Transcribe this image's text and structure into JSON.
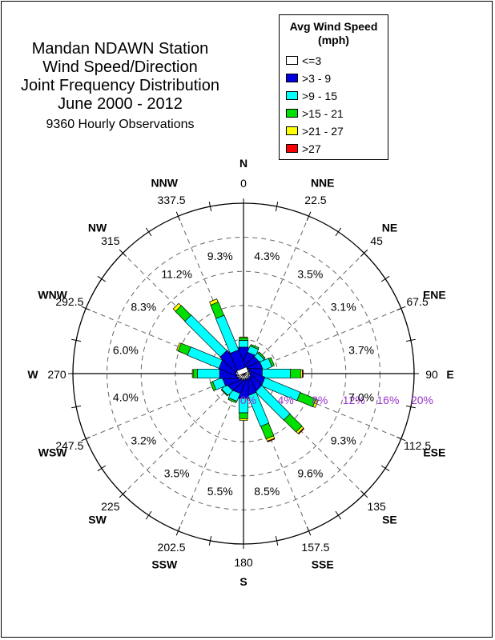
{
  "title": {
    "lines": [
      "Mandan NDAWN Station",
      "Wind Speed/Direction",
      "Joint Frequency Distribution",
      "June 2000 - 2012"
    ],
    "observations": "9360 Hourly Observations"
  },
  "legend": {
    "title": "Avg Wind Speed",
    "unit": "(mph)",
    "items": [
      {
        "label": "<=3",
        "color": "#ffffff"
      },
      {
        "label": ">3 - 9",
        "color": "#0000e0"
      },
      {
        "label": ">9 - 15",
        "color": "#00ffff"
      },
      {
        "label": ">15 - 21",
        "color": "#00e000"
      },
      {
        "label": ">21 - 27",
        "color": "#ffff00"
      },
      {
        "label": ">27",
        "color": "#ff0000"
      }
    ]
  },
  "chart_data": {
    "type": "wind-rose",
    "radial_ticks": [
      "0%",
      "4%",
      "8%",
      "12%",
      "16%",
      "20%"
    ],
    "radial_max": 20,
    "radial_tick_color": "#9933cc",
    "directions": [
      {
        "abbr": "N",
        "deg": "0",
        "pct": "4.3%"
      },
      {
        "abbr": "NNE",
        "deg": "22.5",
        "pct": "3.5%"
      },
      {
        "abbr": "NE",
        "deg": "45",
        "pct": "3.1%"
      },
      {
        "abbr": "ENE",
        "deg": "67.5",
        "pct": "3.7%"
      },
      {
        "abbr": "E",
        "deg": "90",
        "pct": "7.0%"
      },
      {
        "abbr": "ESE",
        "deg": "112.5",
        "pct": "9.3%"
      },
      {
        "abbr": "SE",
        "deg": "135",
        "pct": "9.6%"
      },
      {
        "abbr": "SSE",
        "deg": "157.5",
        "pct": "8.5%"
      },
      {
        "abbr": "S",
        "deg": "180",
        "pct": "5.5%"
      },
      {
        "abbr": "SSW",
        "deg": "202.5",
        "pct": "3.5%"
      },
      {
        "abbr": "SW",
        "deg": "225",
        "pct": "3.2%"
      },
      {
        "abbr": "WSW",
        "deg": "247.5",
        "pct": "4.0%"
      },
      {
        "abbr": "W",
        "deg": "270",
        "pct": "6.0%"
      },
      {
        "abbr": "WNW",
        "deg": "292.5",
        "pct": "8.3%"
      },
      {
        "abbr": "NW",
        "deg": "315",
        "pct": "11.2%"
      },
      {
        "abbr": "NNW",
        "deg": "337.5",
        "pct": "9.3%"
      }
    ],
    "direction_angles": [
      0,
      22.5,
      45,
      67.5,
      90,
      112.5,
      135,
      157.5,
      180,
      202.5,
      225,
      247.5,
      270,
      292.5,
      315,
      337.5
    ],
    "series": [
      {
        "name": "<=3",
        "values": [
          0.6,
          0.5,
          0.5,
          0.5,
          0.5,
          0.5,
          0.5,
          0.6,
          0.6,
          0.5,
          0.5,
          0.5,
          0.6,
          0.6,
          0.7,
          0.6
        ]
      },
      {
        "name": ">3 - 9",
        "values": [
          2.5,
          2.0,
          1.8,
          1.8,
          1.7,
          2.0,
          2.0,
          2.0,
          2.3,
          1.8,
          1.8,
          2.0,
          2.2,
          2.3,
          2.6,
          2.2
        ]
      },
      {
        "name": ">9 - 15",
        "values": [
          0.8,
          0.8,
          0.6,
          1.1,
          3.3,
          4.5,
          4.7,
          3.9,
          1.7,
          1.0,
          0.8,
          1.2,
          2.6,
          4.0,
          5.9,
          4.4
        ]
      },
      {
        "name": ">15 - 21",
        "values": [
          0.3,
          0.2,
          0.2,
          0.3,
          1.2,
          2.0,
          2.0,
          1.6,
          0.7,
          0.2,
          0.1,
          0.3,
          0.5,
          1.2,
          1.6,
          1.7
        ]
      },
      {
        "name": ">21 - 27",
        "values": [
          0.1,
          0.0,
          0.0,
          0.0,
          0.2,
          0.3,
          0.3,
          0.3,
          0.2,
          0.0,
          0.0,
          0.0,
          0.1,
          0.2,
          0.4,
          0.4
        ]
      },
      {
        "name": ">27",
        "values": [
          0.0,
          0.0,
          0.0,
          0.0,
          0.1,
          0.0,
          0.1,
          0.1,
          0.0,
          0.0,
          0.0,
          0.0,
          0.0,
          0.0,
          0.0,
          0.0
        ]
      }
    ],
    "grid": true
  }
}
